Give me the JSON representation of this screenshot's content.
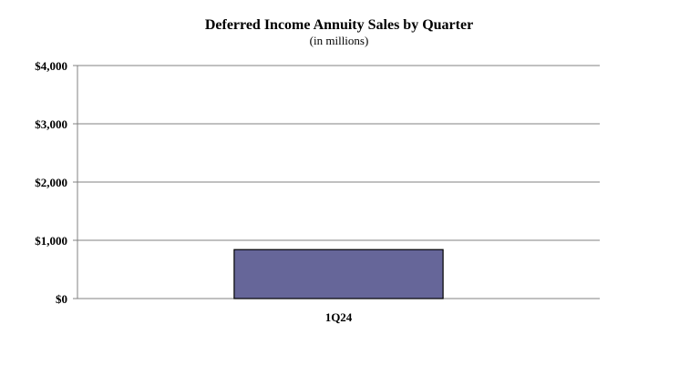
{
  "chart_data": {
    "type": "bar",
    "title": "Deferred Income Annuity Sales by Quarter",
    "subtitle": "(in millions)",
    "categories": [
      "1Q24"
    ],
    "values": [
      840
    ],
    "ylim": [
      0,
      4000
    ],
    "yticks": [
      0,
      1000,
      2000,
      3000,
      4000
    ],
    "ytick_labels": [
      "$0",
      "$1,000",
      "$2,000",
      "$3,000",
      "$4,000"
    ],
    "grid": true,
    "legend": "none",
    "colors": {
      "bar_fill": "#666699",
      "bar_stroke": "#000000",
      "gridline": "#808080",
      "axis": "#808080"
    }
  }
}
